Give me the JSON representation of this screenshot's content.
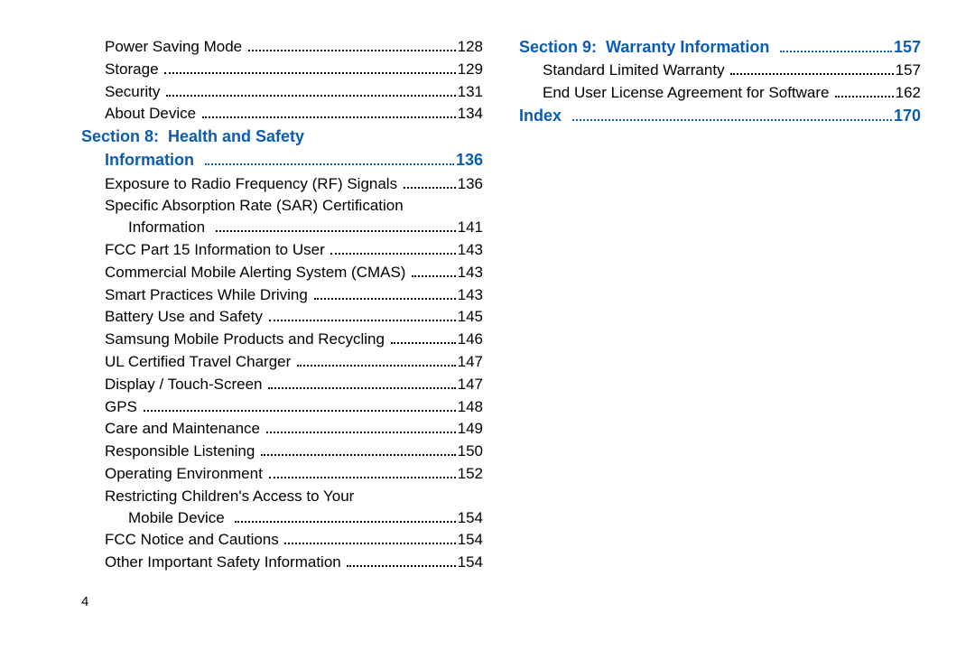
{
  "colors": {
    "section_color": "#0b5cb3",
    "text_color": "#000000",
    "background": "#ffffff"
  },
  "typography": {
    "body_fontsize": 17,
    "section_fontsize": 18,
    "pagenum_fontsize": 15,
    "font_family": "Arial, Helvetica, sans-serif"
  },
  "page_number": "4",
  "left_column": [
    {
      "type": "entry",
      "label": "Power Saving Mode",
      "page": "128",
      "indent": 1
    },
    {
      "type": "entry",
      "label": "Storage",
      "page": "129",
      "indent": 1
    },
    {
      "type": "entry",
      "label": "Security",
      "page": "131",
      "indent": 1
    },
    {
      "type": "entry",
      "label": "About Device",
      "page": "134",
      "indent": 1
    },
    {
      "type": "section_wrap",
      "line1": "Section 8:  Health and Safety",
      "line2_label": "Information",
      "page": "136"
    },
    {
      "type": "entry",
      "label": "Exposure to Radio Frequency (RF) Signals",
      "page": "136",
      "indent": 1
    },
    {
      "type": "wrap",
      "line1": "Specific Absorption Rate (SAR) Certification",
      "line2_label": "Information",
      "page": "141",
      "indent": 1
    },
    {
      "type": "entry",
      "label": "FCC Part 15 Information to User",
      "page": "143",
      "indent": 1
    },
    {
      "type": "entry",
      "label": "Commercial Mobile Alerting System (CMAS)",
      "page": "143",
      "indent": 1
    },
    {
      "type": "entry",
      "label": "Smart Practices While Driving",
      "page": "143",
      "indent": 1
    },
    {
      "type": "entry",
      "label": "Battery Use and Safety",
      "page": "145",
      "indent": 1
    },
    {
      "type": "entry",
      "label": "Samsung Mobile Products and Recycling",
      "page": "146",
      "indent": 1
    },
    {
      "type": "entry",
      "label": "UL Certified Travel Charger",
      "page": "147",
      "indent": 1
    },
    {
      "type": "entry",
      "label": "Display / Touch-Screen",
      "page": "147",
      "indent": 1
    },
    {
      "type": "entry",
      "label": "GPS",
      "page": "148",
      "indent": 1
    },
    {
      "type": "entry",
      "label": "Care and Maintenance",
      "page": "149",
      "indent": 1
    },
    {
      "type": "entry",
      "label": "Responsible Listening",
      "page": "150",
      "indent": 1
    },
    {
      "type": "entry",
      "label": "Operating Environment",
      "page": "152",
      "indent": 1
    },
    {
      "type": "wrap",
      "line1": "Restricting Children's Access to Your",
      "line2_label": "Mobile Device",
      "page": "154",
      "indent": 1
    },
    {
      "type": "entry",
      "label": "FCC Notice and Cautions",
      "page": "154",
      "indent": 1
    },
    {
      "type": "entry",
      "label": "Other Important Safety Information",
      "page": "154",
      "indent": 1
    }
  ],
  "right_column": [
    {
      "type": "section",
      "label": "Section 9:  Warranty Information",
      "page": "157"
    },
    {
      "type": "entry",
      "label": "Standard Limited Warranty",
      "page": "157",
      "indent": 1
    },
    {
      "type": "entry",
      "label": "End User License Agreement for Software",
      "page": "162",
      "indent": 1
    },
    {
      "type": "section",
      "label": "Index",
      "page": "170"
    }
  ]
}
